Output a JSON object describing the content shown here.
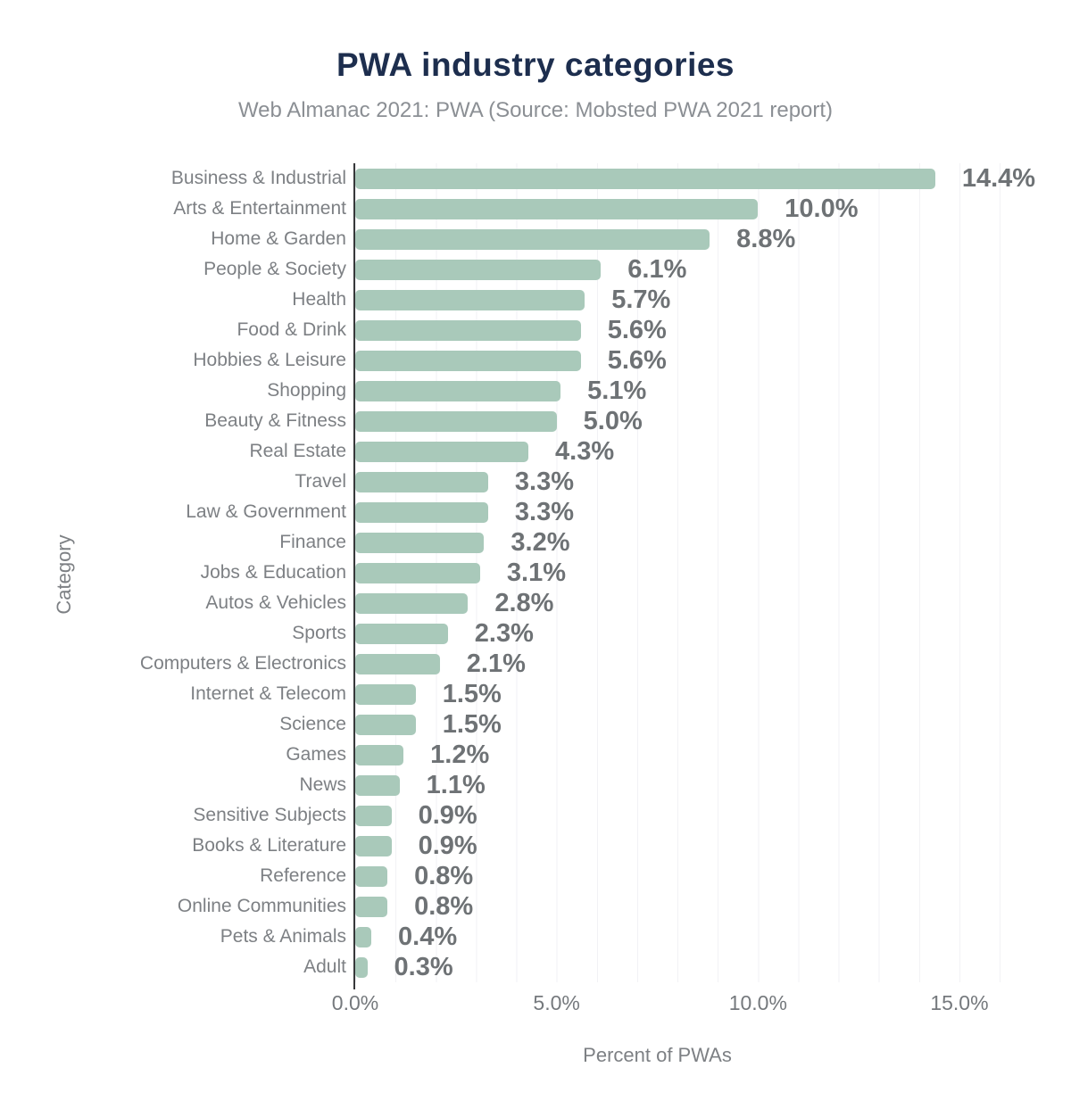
{
  "colors": {
    "bar": "#a9c9ba",
    "title": "#1d2e4e",
    "subtitle": "#8b8f94",
    "category_label": "#7d8084",
    "value_label": "#6e7275",
    "tick_label": "#75797d",
    "axis_line": "#37383a",
    "gridline": "#f2f2f5"
  },
  "chart_data": {
    "type": "bar",
    "orientation": "horizontal",
    "title": "PWA industry categories",
    "subtitle": "Web Almanac 2021: PWA (Source: Mobsted PWA 2021 report)",
    "xlabel": "Percent of PWAs",
    "ylabel": "Category",
    "xlim": [
      0,
      16.3
    ],
    "grid": "vertical gridlines every 1 percent",
    "legend": "none",
    "x_ticks": [
      "0.0%",
      "5.0%",
      "10.0%",
      "15.0%"
    ],
    "categories": [
      "Business & Industrial",
      "Arts & Entertainment",
      "Home & Garden",
      "People & Society",
      "Health",
      "Food & Drink",
      "Hobbies & Leisure",
      "Shopping",
      "Beauty & Fitness",
      "Real Estate",
      "Travel",
      "Law & Government",
      "Finance",
      "Jobs & Education",
      "Autos & Vehicles",
      "Sports",
      "Computers & Electronics",
      "Internet & Telecom",
      "Science",
      "Games",
      "News",
      "Sensitive Subjects",
      "Books & Literature",
      "Reference",
      "Online Communities",
      "Pets & Animals",
      "Adult"
    ],
    "values": [
      14.4,
      10.0,
      8.8,
      6.1,
      5.7,
      5.6,
      5.6,
      5.1,
      5.0,
      4.3,
      3.3,
      3.3,
      3.2,
      3.1,
      2.8,
      2.3,
      2.1,
      1.5,
      1.5,
      1.2,
      1.1,
      0.9,
      0.9,
      0.8,
      0.8,
      0.4,
      0.3
    ],
    "value_labels": [
      "14.4%",
      "10.0%",
      "8.8%",
      "6.1%",
      "5.7%",
      "5.6%",
      "5.6%",
      "5.1%",
      "5.0%",
      "4.3%",
      "3.3%",
      "3.3%",
      "3.2%",
      "3.1%",
      "2.8%",
      "2.3%",
      "2.1%",
      "1.5%",
      "1.5%",
      "1.2%",
      "1.1%",
      "0.9%",
      "0.9%",
      "0.8%",
      "0.8%",
      "0.4%",
      "0.3%"
    ]
  }
}
